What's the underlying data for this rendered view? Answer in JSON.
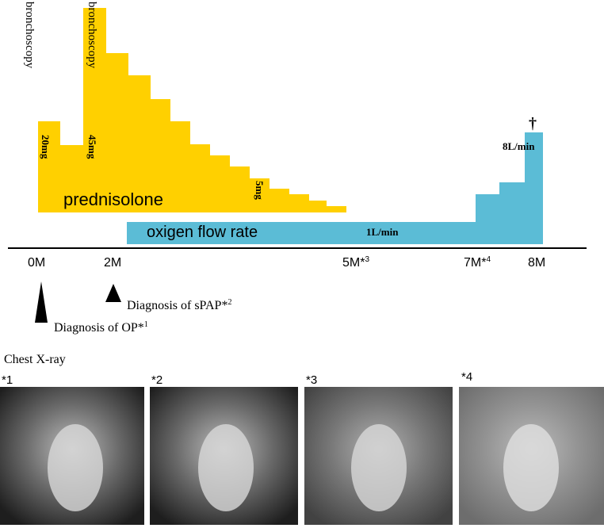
{
  "timeline": {
    "procedures": [
      "bronchoscopy",
      "bronchoscopy"
    ],
    "prednisolone": {
      "label": "prednisolone",
      "doses": [
        "20mg",
        "45mg",
        "5mg"
      ]
    },
    "oxygen": {
      "label": "oxigen flow rate",
      "rates": [
        "1L/min",
        "8L/min"
      ],
      "death_mark": "†"
    },
    "axis_ticks": [
      {
        "text": "0M"
      },
      {
        "text": "2M"
      },
      {
        "text": "5M*",
        "sup": "3"
      },
      {
        "text": "7M*",
        "sup": "4"
      },
      {
        "text": "8M"
      }
    ],
    "events": [
      {
        "text": "Diagnosis of sPAP*",
        "sup": "2"
      },
      {
        "text": "Diagnosis of OP*",
        "sup": "1"
      }
    ]
  },
  "xray": {
    "title": "Chest X-ray",
    "panels": [
      "*1",
      "*2",
      "*3",
      "*4"
    ]
  }
}
